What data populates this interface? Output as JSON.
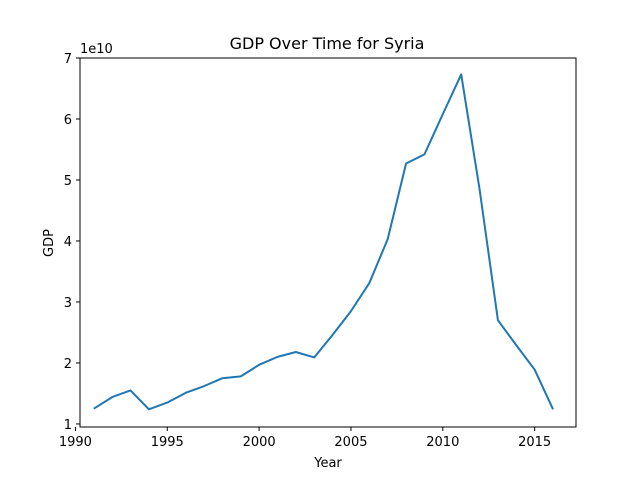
{
  "chart_data": {
    "type": "line",
    "title": "GDP Over Time for Syria",
    "xlabel": "Year",
    "ylabel": "GDP",
    "y_scale_label": "1e10",
    "xlim": [
      1990.25,
      2017.25
    ],
    "ylim": [
      0.95,
      7.0
    ],
    "x_ticks": [
      1990,
      1995,
      2000,
      2005,
      2010,
      2015
    ],
    "y_ticks": [
      1,
      2,
      3,
      4,
      5,
      6,
      7
    ],
    "grid": false,
    "line_color": "#1f77b4",
    "series": [
      {
        "x": [
          1991,
          1992,
          1993,
          1994,
          1995,
          1996,
          1997,
          1998,
          1999,
          2000,
          2001,
          2002,
          2003,
          2004,
          2005,
          2006,
          2007,
          2008,
          2009,
          2010,
          2011,
          2012,
          2013,
          2014,
          2015,
          2016
        ],
        "y": [
          1.25,
          1.44,
          1.55,
          1.24,
          1.35,
          1.51,
          1.62,
          1.75,
          1.78,
          1.97,
          2.1,
          2.18,
          2.09,
          2.46,
          2.85,
          3.31,
          4.03,
          5.27,
          5.42,
          6.08,
          6.73,
          4.85,
          2.7,
          2.29,
          1.89,
          1.24
        ]
      }
    ]
  }
}
